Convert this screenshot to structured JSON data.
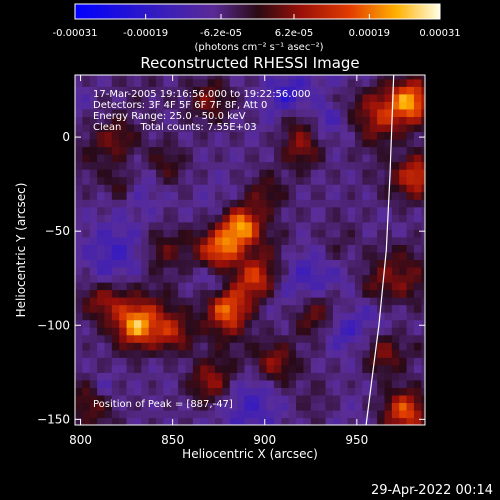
{
  "colorbar": {
    "tick_labels": [
      "-0.00031",
      "-0.00019",
      "-6.2e-05",
      "6.2e-05",
      "0.00019",
      "0.00031"
    ],
    "unit_label": "(photons cm⁻² s⁻¹ asec⁻²)",
    "range": [
      -0.00031,
      0.00031
    ]
  },
  "chart_data": {
    "type": "heatmap",
    "title": "Reconstructed RHESSI Image",
    "xlabel": "Heliocentric X (arcsec)",
    "ylabel": "Heliocentric Y (arcsec)",
    "xlim": [
      797,
      987
    ],
    "ylim": [
      -153,
      33
    ],
    "x_ticks": [
      800,
      850,
      900,
      950
    ],
    "y_ticks": [
      -150,
      -100,
      -50,
      0
    ],
    "x_tick_labels": [
      "800",
      "850",
      "900",
      "950"
    ],
    "y_tick_labels": [
      "−150",
      "−100",
      "−50",
      "0"
    ],
    "peak_position": [
      887,
      -47
    ],
    "info_lines": [
      "17-Mar-2005 19:16:56.000 to 19:22:56.000",
      "Detectors: 3F 4F 5F 6F 7F 8F, Att 0",
      "Energy Range: 25.0 - 50.0 keV",
      "Clean      Total counts: 7.55E+03"
    ],
    "peak_label": "Position of Peak = [887,-47]",
    "limb_line": [
      [
        955,
        -153
      ],
      [
        958,
        -130
      ],
      [
        962,
        -100
      ],
      [
        966,
        -60
      ],
      [
        968,
        -20
      ],
      [
        970,
        33
      ]
    ],
    "bright_sources": [
      {
        "x": 887,
        "y": -47,
        "value": 0.00031
      },
      {
        "x": 875,
        "y": -60,
        "value": 0.00024
      },
      {
        "x": 895,
        "y": -75,
        "value": 0.0002
      },
      {
        "x": 880,
        "y": -90,
        "value": 0.00018
      },
      {
        "x": 830,
        "y": -100,
        "value": 0.00019
      },
      {
        "x": 812,
        "y": -85,
        "value": 0.00015
      },
      {
        "x": 850,
        "y": -105,
        "value": 0.00016
      },
      {
        "x": 905,
        "y": -120,
        "value": 0.00015
      },
      {
        "x": 870,
        "y": -130,
        "value": 0.00014
      },
      {
        "x": 920,
        "y": -5,
        "value": 0.00014
      },
      {
        "x": 935,
        "y": 15,
        "value": 0.00013
      },
      {
        "x": 870,
        "y": 20,
        "value": 0.00012
      },
      {
        "x": 845,
        "y": -15,
        "value": 0.0001
      },
      {
        "x": 820,
        "y": 0,
        "value": 0.0001
      },
      {
        "x": 980,
        "y": 20,
        "value": 0.00022
      },
      {
        "x": 983,
        "y": -20,
        "value": 0.00019
      },
      {
        "x": 975,
        "y": -145,
        "value": 0.00018
      },
      {
        "x": 965,
        "y": -115,
        "value": 0.00014
      },
      {
        "x": 960,
        "y": -80,
        "value": 0.00012
      },
      {
        "x": 900,
        "y": -30,
        "value": 0.00011
      },
      {
        "x": 845,
        "y": -60,
        "value": 0.0001
      },
      {
        "x": 925,
        "y": -95,
        "value": 0.0001
      },
      {
        "x": 805,
        "y": -140,
        "value": 0.00011
      }
    ]
  },
  "footer": {
    "timestamp": "29-Apr-2022 00:14"
  }
}
